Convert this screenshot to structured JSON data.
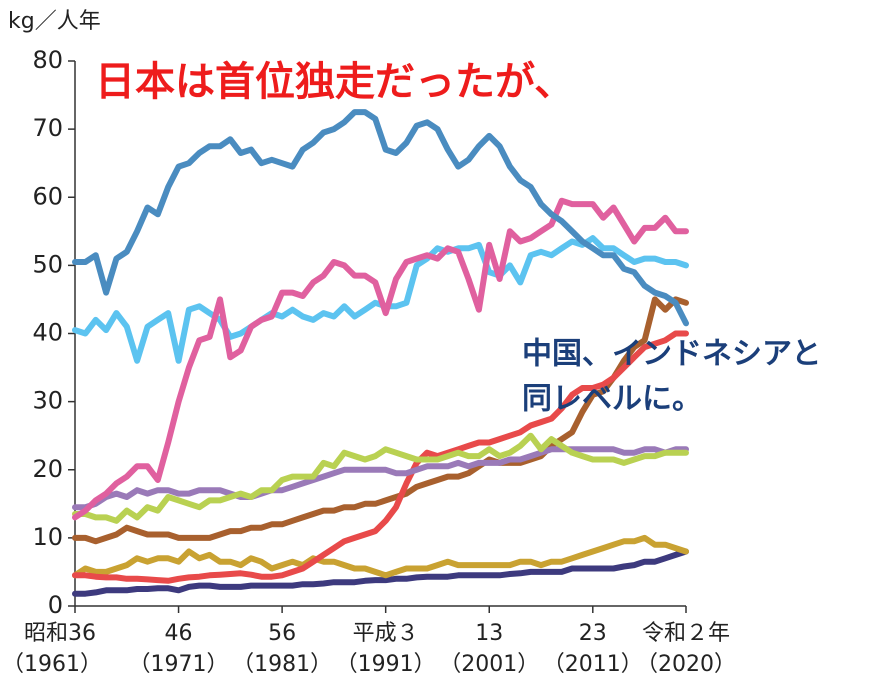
{
  "chart_data": {
    "type": "line",
    "ylabel": "kg／人年",
    "annotations": [
      "日本は首位独走だったが、",
      "中国、インドネシアと",
      "同レベルに。"
    ],
    "x": [
      1961,
      1962,
      1963,
      1964,
      1965,
      1966,
      1967,
      1968,
      1969,
      1970,
      1971,
      1972,
      1973,
      1974,
      1975,
      1976,
      1977,
      1978,
      1979,
      1980,
      1981,
      1982,
      1983,
      1984,
      1985,
      1986,
      1987,
      1988,
      1989,
      1990,
      1991,
      1992,
      1993,
      1994,
      1995,
      1996,
      1997,
      1998,
      1999,
      2000,
      2001,
      2002,
      2003,
      2004,
      2005,
      2006,
      2007,
      2008,
      2009,
      2010,
      2011,
      2012,
      2013,
      2014,
      2015,
      2016,
      2017,
      2018,
      2019,
      2020
    ],
    "xlim": [
      1961,
      2020
    ],
    "xticks": [
      {
        "value": 1961,
        "label": "昭和36"
      },
      {
        "value": 1971,
        "label": "46"
      },
      {
        "value": 1981,
        "label": "56"
      },
      {
        "value": 1991,
        "label": "平成３"
      },
      {
        "value": 2001,
        "label": "13"
      },
      {
        "value": 2011,
        "label": "23"
      },
      {
        "value": 2020,
        "label": "令和２年"
      }
    ],
    "xtick_sublabels": [
      "（1961）",
      "（1971）",
      "（1981）",
      "（1991）",
      "（2001）",
      "（2011）",
      "（2020）"
    ],
    "ylim": [
      0,
      80
    ],
    "yticks": [
      0,
      10,
      20,
      30,
      40,
      50,
      60,
      70,
      80
    ],
    "series": [
      {
        "color": "#3d3a7e",
        "values": [
          1.8,
          1.8,
          2,
          2.3,
          2.3,
          2.3,
          2.5,
          2.5,
          2.6,
          2.6,
          2.3,
          2.8,
          3,
          3,
          2.8,
          2.8,
          2.8,
          3,
          3,
          3,
          3,
          3,
          3.2,
          3.2,
          3.3,
          3.5,
          3.5,
          3.5,
          3.7,
          3.8,
          3.8,
          4,
          4,
          4.2,
          4.3,
          4.3,
          4.3,
          4.5,
          4.5,
          4.5,
          4.5,
          4.5,
          4.7,
          4.8,
          5,
          5,
          5,
          5,
          5.5,
          5.5,
          5.5,
          5.5,
          5.5,
          5.8,
          6,
          6.5,
          6.5,
          7,
          7.5,
          8
        ]
      },
      {
        "color": "#c9a232",
        "values": [
          4.5,
          5.5,
          5,
          5,
          5.5,
          6,
          7,
          6.5,
          7,
          7,
          6.5,
          8,
          7,
          7.5,
          6.5,
          6.5,
          6,
          7,
          6.5,
          5.5,
          6,
          6.5,
          6,
          7,
          6.5,
          6.5,
          6,
          5.5,
          5.5,
          5,
          4.5,
          5,
          5.5,
          5.5,
          5.5,
          6,
          6.5,
          6,
          6,
          6,
          6,
          6,
          6,
          6.5,
          6.5,
          6,
          6.5,
          6.5,
          7,
          7.5,
          8,
          8.5,
          9,
          9.5,
          9.5,
          10,
          9,
          9,
          8.5,
          8
        ]
      },
      {
        "color": "#a8602e",
        "values": [
          10,
          10,
          9.5,
          10,
          10.5,
          11.5,
          11,
          10.5,
          10.5,
          10.5,
          10,
          10,
          10,
          10,
          10.5,
          11,
          11,
          11.5,
          11.5,
          12,
          12,
          12.5,
          13,
          13.5,
          14,
          14,
          14.5,
          14.5,
          15,
          15,
          15.5,
          16,
          16.5,
          17.5,
          18,
          18.5,
          19,
          19,
          19.5,
          20.5,
          21.5,
          21,
          21,
          21,
          21.5,
          22,
          23.5,
          24.5,
          25.5,
          28.5,
          31,
          31.5,
          33.5,
          36,
          38,
          39,
          45,
          43.5,
          45,
          44.5
        ]
      },
      {
        "color": "#e84a4a",
        "values": [
          4.5,
          4.5,
          4.3,
          4.2,
          4.2,
          4,
          4,
          3.9,
          3.8,
          3.7,
          4,
          4.2,
          4.3,
          4.5,
          4.6,
          4.7,
          4.8,
          4.6,
          4.3,
          4.3,
          4.5,
          5,
          5.5,
          6.5,
          7.5,
          8.5,
          9.5,
          10,
          10.5,
          11,
          12.5,
          14.5,
          18,
          21,
          22.5,
          22,
          22.5,
          23,
          23.5,
          24,
          24,
          24.5,
          25,
          25.5,
          26.5,
          27,
          27.5,
          29,
          31,
          32,
          32,
          32.5,
          33.5,
          35,
          36.5,
          38,
          38.5,
          39,
          40,
          40
        ]
      },
      {
        "color": "#9a7ab8",
        "values": [
          14.5,
          14.5,
          15,
          16,
          16.5,
          16,
          17,
          16.5,
          17,
          17,
          16.5,
          16.5,
          17,
          17,
          17,
          16.5,
          16,
          16,
          16.5,
          17,
          17,
          17.5,
          18,
          18.5,
          19,
          19.5,
          20,
          20,
          20,
          20,
          20,
          19.5,
          19.5,
          20,
          20.5,
          20.5,
          20.5,
          21,
          20.5,
          21,
          21,
          21,
          21.5,
          21.5,
          22,
          22.5,
          23,
          23,
          23,
          23,
          23,
          23,
          23,
          22.5,
          22.5,
          23,
          23,
          22.5,
          23,
          23
        ]
      },
      {
        "color": "#b9d152",
        "values": [
          13.5,
          13.5,
          13,
          13,
          12.5,
          14,
          13,
          14.5,
          14,
          16,
          15.5,
          15,
          14.5,
          15.5,
          15.5,
          16,
          16.5,
          16,
          17,
          17,
          18.5,
          19,
          19,
          19,
          21,
          20.5,
          22.5,
          22,
          21.5,
          22,
          23,
          22.5,
          22,
          21.5,
          21.5,
          21.5,
          22,
          22.5,
          22,
          22,
          23,
          22,
          22.5,
          23.5,
          25,
          23,
          24.5,
          23.5,
          22.5,
          22,
          21.5,
          21.5,
          21.5,
          21,
          21.5,
          22,
          22,
          22.5,
          22.5,
          22.5
        ]
      },
      {
        "color": "#5cc3f0",
        "values": [
          40.5,
          40,
          42,
          40.5,
          43,
          41,
          36,
          41,
          42,
          43,
          36,
          43.5,
          44,
          43,
          42,
          39.5,
          40,
          41,
          42,
          43,
          42.5,
          43.5,
          42.5,
          42,
          43,
          42.5,
          44,
          42.5,
          43.5,
          44.5,
          44,
          44,
          44.5,
          50,
          51,
          52.5,
          52,
          52.5,
          52.5,
          53,
          49,
          48.5,
          50,
          47.5,
          51.5,
          52,
          51.5,
          52.5,
          53.5,
          53,
          54,
          52.5,
          52.5,
          51.5,
          50.5,
          51,
          51,
          50.5,
          50.5,
          50
        ]
      },
      {
        "color": "#e0609f",
        "values": [
          13,
          14,
          15.5,
          16.5,
          18,
          19,
          20.5,
          20.5,
          18.5,
          24,
          30,
          35,
          39,
          39.5,
          45,
          36.5,
          37.5,
          41,
          42,
          42.5,
          46,
          46,
          45.5,
          47.5,
          48.5,
          50.5,
          50,
          48.5,
          48.5,
          47.5,
          43,
          48,
          50.5,
          51,
          51.5,
          51,
          52.5,
          52,
          48,
          43.5,
          53,
          48,
          55,
          53.5,
          54,
          55,
          56,
          59.5,
          59,
          59,
          59,
          57,
          58.5,
          56,
          53.5,
          55.5,
          55.5,
          57,
          55,
          55
        ]
      },
      {
        "color": "#4a8cc0",
        "values": [
          50.5,
          50.5,
          51.5,
          46,
          51,
          52,
          55,
          58.5,
          57.5,
          61.5,
          64.5,
          65,
          66.5,
          67.5,
          67.5,
          68.5,
          66.5,
          67,
          65,
          65.5,
          65,
          64.5,
          67,
          68,
          69.5,
          70,
          71,
          72.5,
          72.5,
          71.5,
          67,
          66.5,
          68,
          70.5,
          71,
          70,
          67,
          64.5,
          65.5,
          67.5,
          69,
          67.5,
          64.5,
          62.5,
          61.5,
          59,
          57.5,
          56.5,
          55,
          53.5,
          52.5,
          51.5,
          51.5,
          49.5,
          49,
          47,
          46,
          45.5,
          44.5,
          41.5
        ]
      }
    ]
  }
}
